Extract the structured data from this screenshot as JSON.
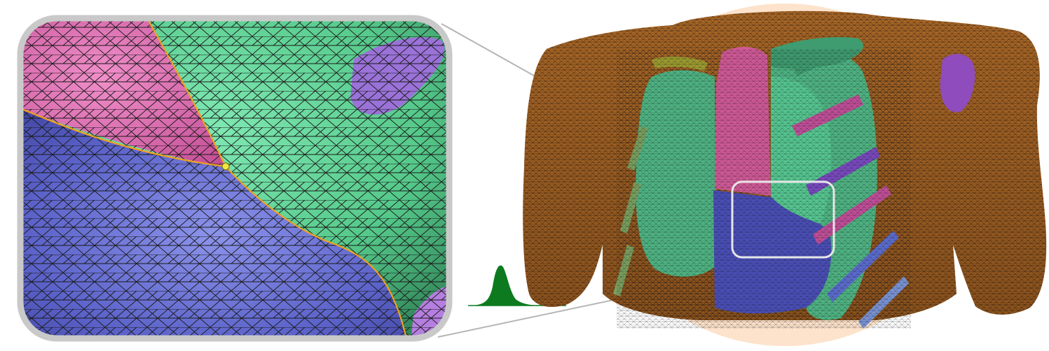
{
  "figure": {
    "panels": [
      "zoomed-mesh-detail",
      "torso-mesh-overview"
    ],
    "zoom_panel_frame_color": "#c9c9c9",
    "zoom_region_highlight_color": "#e6e6e6",
    "connector_line_color": "#b5b5b5",
    "mesh_line_color": "#1a1a1a",
    "regions": {
      "pink": "#e06fb4",
      "green": "#62d69a",
      "blue": "#5b62c9",
      "violet": "#9a72d8",
      "interface_line": "#f0a020",
      "junction_point": "#f2e640",
      "torso_skin": "#7a4718",
      "torso_orange": "#e88c32",
      "torso_halo": "#fde3cc"
    },
    "distribution_curve_color": "#0d7a1f",
    "distribution_baseline_color": "#0d7a1f"
  }
}
